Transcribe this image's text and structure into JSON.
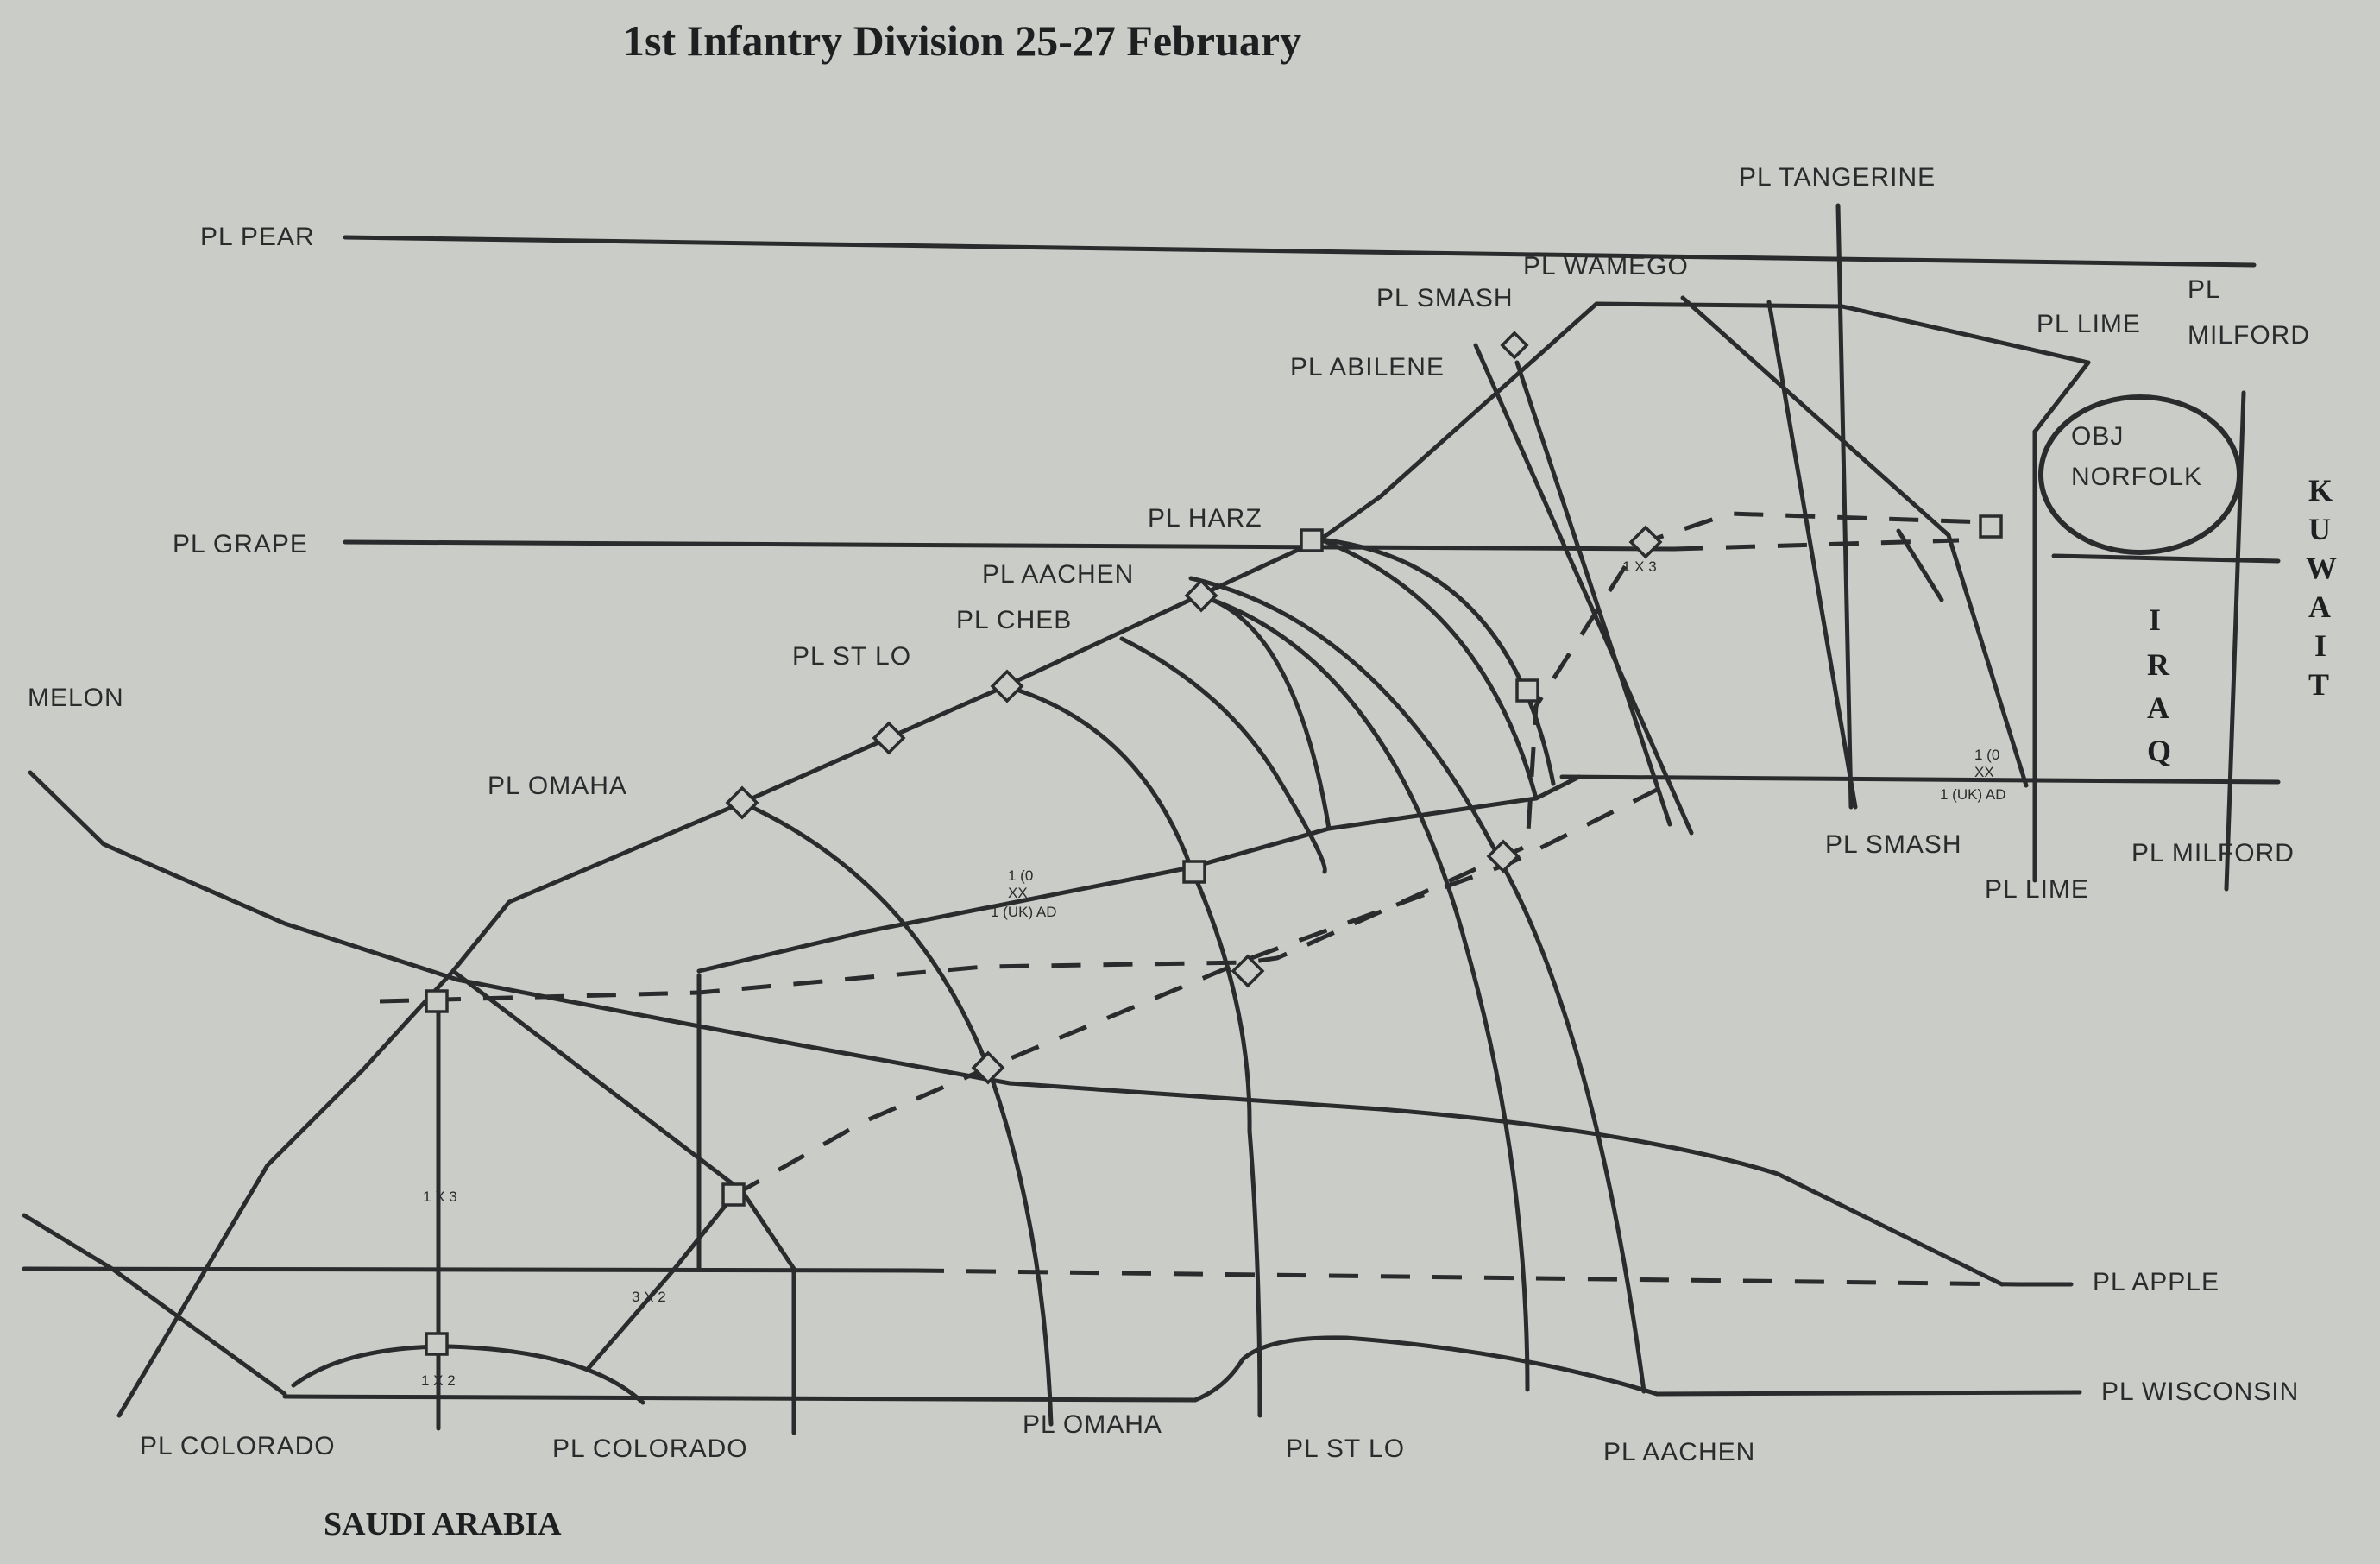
{
  "title": "1st Infantry Division 25-27 February",
  "countries": {
    "saudi_arabia": "SAUDI ARABIA",
    "iraq": [
      "I",
      "R",
      "A",
      "Q"
    ],
    "kuwait": [
      "K",
      "U",
      "W",
      "A",
      "I",
      "T"
    ]
  },
  "phase_lines": {
    "pear": "PL PEAR",
    "grape": "PL GRAPE",
    "melon": "MELON",
    "tangerine": "PL TANGERINE",
    "wamego": "PL WAMEGO",
    "smash_top": "PL SMASH",
    "abilene": "PL ABILENE",
    "lime_top": "PL LIME",
    "milford_top_1": "PL",
    "milford_top_2": "MILFORD",
    "harz": "PL HARZ",
    "aachen_top": "PL AACHEN",
    "cheb": "PL CHEB",
    "st_lo_top": "PL ST LO",
    "omaha_top": "PL OMAHA",
    "smash_bottom": "PL SMASH",
    "lime_bottom": "PL LIME",
    "milford_bottom": "PL MILFORD",
    "apple": "PL APPLE",
    "wisconsin": "PL WISCONSIN",
    "colorado_left": "PL COLORADO",
    "colorado_right": "PL COLORADO",
    "omaha_bottom": "PL OMAHA",
    "st_lo_bottom": "PL ST LO",
    "aachen_bottom": "PL AACHEN"
  },
  "objective": {
    "line1": "OBJ",
    "line2": "NORFOLK"
  },
  "units": {
    "uk_mid": {
      "l1": "1 (0",
      "l2": "XX",
      "l3": "1 (UK) AD"
    },
    "uk_east": {
      "l1": "1 (0",
      "l2": "XX",
      "l3": "1 (UK) AD"
    },
    "brigade_a": "1 X 3",
    "brigade_b": "3 X 2",
    "brigade_c": "1 X 3",
    "brigade_d": "1 X 2"
  }
}
